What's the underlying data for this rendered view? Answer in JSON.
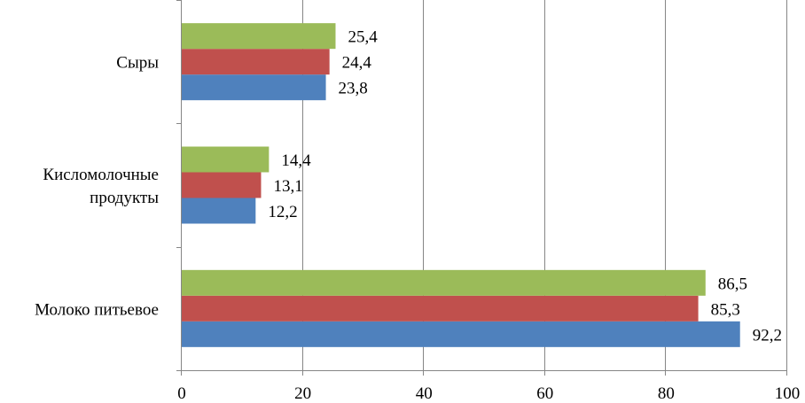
{
  "chart_data": {
    "type": "bar",
    "orientation": "horizontal",
    "categories": [
      [
        "Сыры"
      ],
      [
        "Кисломолочные",
        "продукты"
      ],
      [
        "Молоко питьевое"
      ]
    ],
    "series": [
      {
        "values": [
          23.8,
          12.2,
          92.2
        ],
        "labels": [
          "23,8",
          "12,2",
          "92,2"
        ],
        "color": "#4F81BD"
      },
      {
        "values": [
          24.4,
          13.1,
          85.3
        ],
        "labels": [
          "24,4",
          "13,1",
          "85,3"
        ],
        "color": "#C0504D"
      },
      {
        "values": [
          25.4,
          14.4,
          86.5
        ],
        "labels": [
          "25,4",
          "14,4",
          "86,5"
        ],
        "color": "#9BBB59"
      }
    ],
    "xlim": [
      0,
      100
    ],
    "xticks": [
      0,
      20,
      40,
      60,
      80,
      100
    ],
    "grid": true
  }
}
